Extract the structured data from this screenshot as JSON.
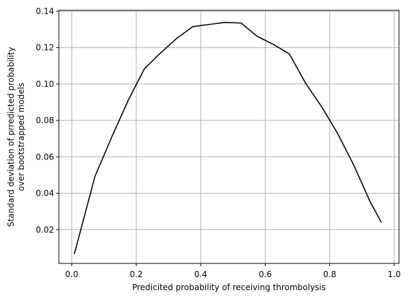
{
  "chart_data": {
    "type": "line",
    "title": "",
    "xlabel": "Predicited probability of receiving thrombolysis",
    "ylabel_lines": [
      "Standard deviation of prredicted probability",
      "over bootstrapped models"
    ],
    "xlim": [
      -0.04,
      1.015
    ],
    "ylim": [
      0.0015,
      0.1405
    ],
    "x_ticks": [
      0.0,
      0.2,
      0.4,
      0.6,
      0.8,
      1.0
    ],
    "x_tick_labels": [
      "0.0",
      "0.2",
      "0.4",
      "0.6",
      "0.8",
      "1.0"
    ],
    "y_ticks": [
      0.02,
      0.04,
      0.06,
      0.08,
      0.1,
      0.12,
      0.14
    ],
    "y_tick_labels": [
      "0.02",
      "0.04",
      "0.06",
      "0.08",
      "0.10",
      "0.12",
      "0.14"
    ],
    "grid": true,
    "series": [
      {
        "color": "#000000",
        "x": [
          0.008,
          0.072,
          0.125,
          0.175,
          0.225,
          0.275,
          0.325,
          0.375,
          0.425,
          0.475,
          0.525,
          0.575,
          0.625,
          0.675,
          0.725,
          0.775,
          0.825,
          0.875,
          0.925,
          0.96
        ],
        "y": [
          0.0067,
          0.0493,
          0.0713,
          0.091,
          0.1083,
          0.117,
          0.125,
          0.1315,
          0.1327,
          0.1338,
          0.1335,
          0.1262,
          0.1218,
          0.1165,
          0.1005,
          0.0875,
          0.0727,
          0.0553,
          0.0355,
          0.024
        ]
      }
    ]
  }
}
